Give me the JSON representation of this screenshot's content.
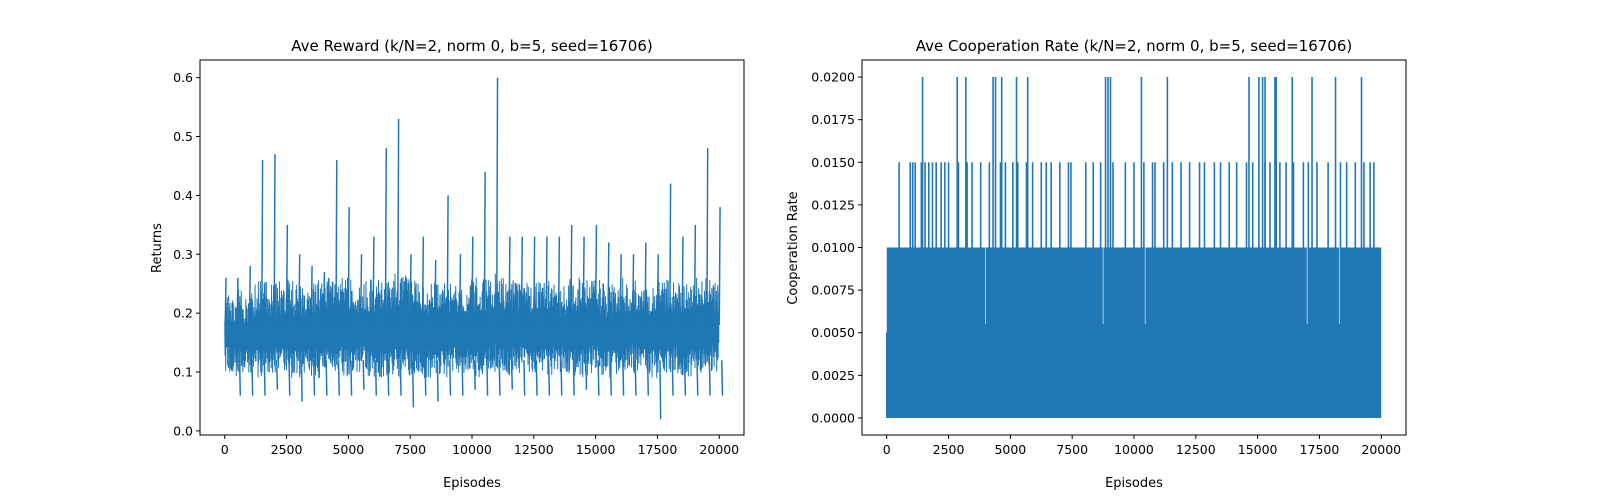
{
  "chart_data": [
    {
      "type": "line",
      "title": "Ave Reward (k/N=2, norm 0, b=5, seed=16706)",
      "xlabel": "Episodes",
      "ylabel": "Returns",
      "xlim": [
        -1000,
        21000
      ],
      "ylim": [
        -0.007,
        0.63
      ],
      "xticks": [
        0,
        2500,
        5000,
        7500,
        10000,
        12500,
        15000,
        17500,
        20000
      ],
      "xtick_labels": [
        "0",
        "2500",
        "5000",
        "7500",
        "10000",
        "12500",
        "15000",
        "17500",
        "20000"
      ],
      "yticks": [
        0.0,
        0.1,
        0.2,
        0.3,
        0.4,
        0.5,
        0.6
      ],
      "ytick_labels": [
        "0.0",
        "0.1",
        "0.2",
        "0.3",
        "0.4",
        "0.5",
        "0.6"
      ],
      "color": "#1f77b4",
      "grid": false,
      "series": [
        {
          "x": [
            0,
            500,
            1000,
            1500,
            2000,
            2500,
            3000,
            3500,
            4000,
            4500,
            5000,
            5500,
            6000,
            6500,
            7000,
            7500,
            8000,
            8500,
            9000,
            9500,
            10000,
            10500,
            11000,
            11500,
            12000,
            12500,
            13000,
            13500,
            14000,
            14500,
            15000,
            15500,
            16000,
            16500,
            17000,
            17500,
            18000,
            18500,
            19000,
            19500,
            20000
          ],
          "min": [
            0.11,
            0.06,
            0.06,
            0.06,
            0.07,
            0.06,
            0.05,
            0.06,
            0.06,
            0.06,
            0.06,
            0.07,
            0.06,
            0.06,
            0.06,
            0.04,
            0.06,
            0.05,
            0.06,
            0.06,
            0.07,
            0.06,
            0.06,
            0.07,
            0.06,
            0.06,
            0.06,
            0.06,
            0.06,
            0.07,
            0.06,
            0.06,
            0.06,
            0.06,
            0.06,
            0.02,
            0.06,
            0.06,
            0.06,
            0.06,
            0.06
          ],
          "max": [
            0.26,
            0.26,
            0.28,
            0.46,
            0.47,
            0.35,
            0.3,
            0.28,
            0.27,
            0.46,
            0.38,
            0.3,
            0.33,
            0.48,
            0.53,
            0.3,
            0.33,
            0.29,
            0.4,
            0.3,
            0.33,
            0.44,
            0.6,
            0.33,
            0.33,
            0.33,
            0.33,
            0.33,
            0.35,
            0.33,
            0.35,
            0.32,
            0.3,
            0.3,
            0.32,
            0.3,
            0.42,
            0.33,
            0.35,
            0.48,
            0.38
          ],
          "core_low": [
            0.1,
            0.09,
            0.09,
            0.09,
            0.1,
            0.09,
            0.09,
            0.09,
            0.09,
            0.1,
            0.09,
            0.1,
            0.09,
            0.09,
            0.09,
            0.09,
            0.09,
            0.09,
            0.09,
            0.1,
            0.09,
            0.09,
            0.1,
            0.09,
            0.1,
            0.09,
            0.09,
            0.1,
            0.09,
            0.09,
            0.1,
            0.09,
            0.09,
            0.1,
            0.09,
            0.09,
            0.1,
            0.09,
            0.09,
            0.1,
            0.1
          ],
          "core_high": [
            0.23,
            0.24,
            0.24,
            0.26,
            0.25,
            0.26,
            0.25,
            0.25,
            0.26,
            0.26,
            0.26,
            0.25,
            0.26,
            0.26,
            0.27,
            0.26,
            0.25,
            0.26,
            0.26,
            0.25,
            0.26,
            0.26,
            0.27,
            0.26,
            0.25,
            0.26,
            0.26,
            0.25,
            0.26,
            0.26,
            0.26,
            0.25,
            0.26,
            0.26,
            0.25,
            0.26,
            0.26,
            0.25,
            0.26,
            0.26,
            0.25
          ]
        }
      ]
    },
    {
      "type": "line",
      "title": "Ave Cooperation Rate (k/N=2, norm 0, b=5, seed=16706)",
      "xlabel": "Episodes",
      "ylabel": "Cooperation Rate",
      "xlim": [
        -1000,
        21000
      ],
      "ylim": [
        -0.001,
        0.021
      ],
      "xticks": [
        0,
        2500,
        5000,
        7500,
        10000,
        12500,
        15000,
        17500,
        20000
      ],
      "xtick_labels": [
        "0",
        "2500",
        "5000",
        "7500",
        "10000",
        "12500",
        "15000",
        "17500",
        "20000"
      ],
      "yticks": [
        0.0,
        0.0025,
        0.005,
        0.0075,
        0.01,
        0.0125,
        0.015,
        0.0175,
        0.02
      ],
      "ytick_labels": [
        "0.0000",
        "0.0025",
        "0.0050",
        "0.0075",
        "0.0100",
        "0.0125",
        "0.0150",
        "0.0175",
        "0.0200"
      ],
      "color": "#1f77b4",
      "grid": false,
      "series": [
        {
          "base": 0.0,
          "band_top": 0.01,
          "spikes_0015": [
            500,
            950,
            1050,
            1150,
            1400,
            1550,
            1700,
            1850,
            2000,
            2200,
            2350,
            2500,
            2900,
            3250,
            3450,
            3800,
            4150,
            4600,
            4800,
            5100,
            5300,
            5650,
            5900,
            6250,
            6450,
            6650,
            7000,
            7350,
            7450,
            8050,
            8350,
            8650,
            9150,
            9650,
            10000,
            10400,
            10750,
            10850,
            11200,
            11550,
            11900,
            12250,
            12650,
            12850,
            13250,
            13500,
            13850,
            14150,
            14550,
            14800,
            15300,
            15500,
            15900,
            16150,
            16450,
            16850,
            17050,
            17400,
            17850,
            18350,
            18600,
            18950,
            19300,
            19550,
            19700
          ],
          "spikes_002": [
            1450,
            2850,
            3200,
            4300,
            4400,
            4650,
            5250,
            5700,
            8850,
            8950,
            9050,
            10300,
            11350,
            14650,
            15050,
            15200,
            15300,
            15700,
            15750,
            16400,
            17200,
            18150,
            19200
          ]
        }
      ]
    }
  ]
}
